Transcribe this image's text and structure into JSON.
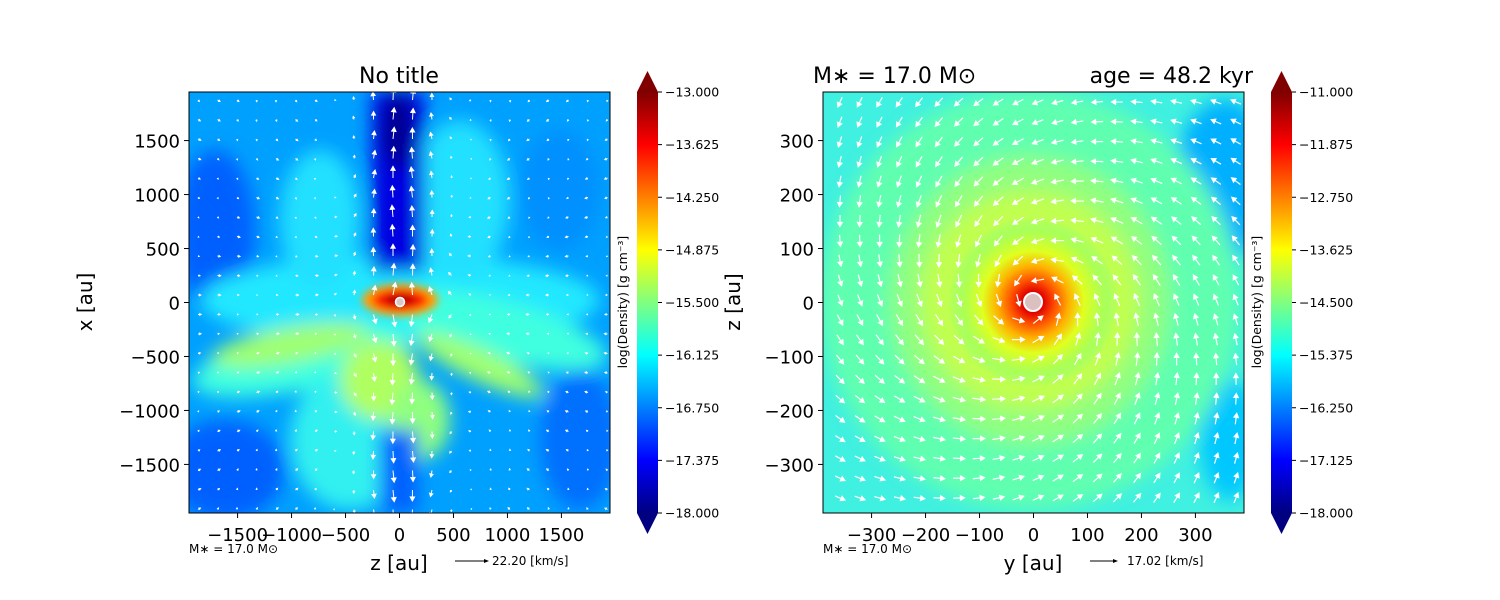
{
  "colormap_jet": [
    "#000080",
    "#0000ff",
    "#0080ff",
    "#00ffff",
    "#80ff80",
    "#ffff00",
    "#ff8000",
    "#ff0000",
    "#800000"
  ],
  "chart_data": [
    {
      "type": "heatmap",
      "title": "No title",
      "xlabel": "z [au]",
      "ylabel": "x [au]",
      "xlim": [
        -1950,
        1950
      ],
      "ylim": [
        -1950,
        1950
      ],
      "x_ticks": [
        -1500,
        -1000,
        -500,
        0,
        500,
        1000,
        1500
      ],
      "x_tick_labels": [
        "−1500",
        "−1000",
        "−500",
        "0",
        "500",
        "1000",
        "1500"
      ],
      "y_ticks": [
        1500,
        1000,
        500,
        0,
        -500,
        -1000,
        -1500
      ],
      "y_tick_labels": [
        "1500",
        "1000",
        "500",
        "0",
        "−500",
        "−1000",
        "−1500"
      ],
      "colorbar": {
        "label": "log(Density) [g cm⁻³]",
        "range": [
          -18.0,
          -13.0
        ],
        "ticks": [
          "−13.000",
          "−13.625",
          "−14.250",
          "−14.875",
          "−15.500",
          "−16.125",
          "−16.750",
          "−17.375",
          "−18.000"
        ],
        "extend": "both"
      },
      "stellar_mass_note": "M∗ = 17.0 M⊙",
      "velocity_key": "22.20 [km/s]",
      "description_features": {
        "outflow_axis": "vertical",
        "disk_orientation": "horizontal"
      }
    },
    {
      "type": "heatmap",
      "title_left": "M∗ = 17.0 M⊙",
      "title_right": "age = 48.2 kyr",
      "xlabel": "y [au]",
      "ylabel": "z [au]",
      "xlim": [
        -390,
        390
      ],
      "ylim": [
        -390,
        390
      ],
      "x_ticks": [
        -300,
        -200,
        -100,
        0,
        100,
        200,
        300
      ],
      "x_tick_labels": [
        "−300",
        "−200",
        "−100",
        "0",
        "100",
        "200",
        "300"
      ],
      "y_ticks": [
        300,
        200,
        100,
        0,
        -100,
        -200,
        -300
      ],
      "y_tick_labels": [
        "300",
        "200",
        "100",
        "0",
        "−100",
        "−200",
        "−300"
      ],
      "colorbar": {
        "label": "log(Density) [g cm⁻³]",
        "range": [
          -18.0,
          -11.0
        ],
        "ticks": [
          "−11.000",
          "−11.875",
          "−12.750",
          "−13.625",
          "−14.500",
          "−15.375",
          "−16.250",
          "−17.125",
          "−18.000"
        ],
        "extend": "both"
      },
      "stellar_mass_note": "M∗ = 17.0 M⊙",
      "velocity_key": "17.02 [km/s]"
    }
  ]
}
